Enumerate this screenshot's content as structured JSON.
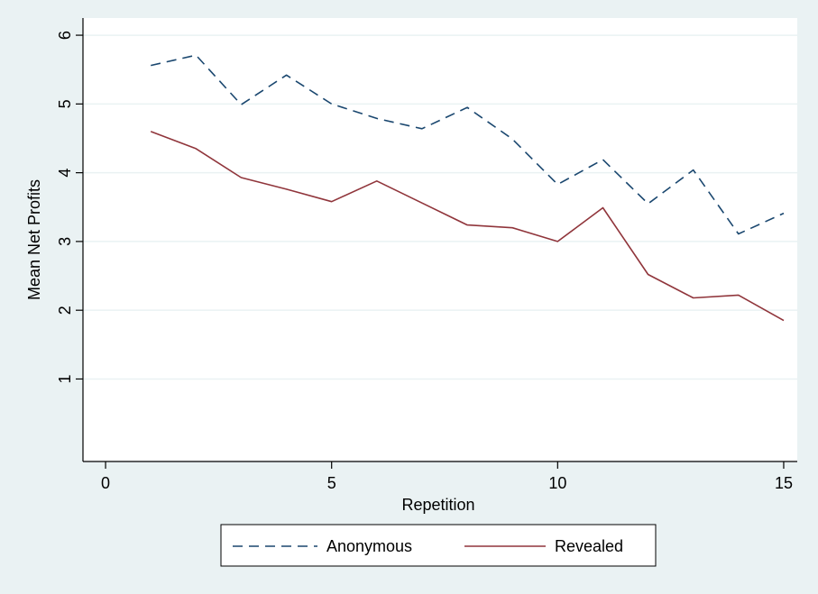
{
  "chart_data": {
    "type": "line",
    "title": "",
    "xlabel": "Repetition",
    "ylabel": "Mean Net Profits",
    "xlim": [
      -0.5,
      15.3
    ],
    "ylim": [
      -0.2,
      6.25
    ],
    "x_ticks": [
      0,
      5,
      10,
      15
    ],
    "y_ticks": [
      1,
      2,
      3,
      4,
      5,
      6
    ],
    "x_tick_labels": [
      "0",
      "5",
      "10",
      "15"
    ],
    "y_tick_labels": [
      "1",
      "2",
      "3",
      "4",
      "5",
      "6"
    ],
    "grid": true,
    "legend_position": "bottom",
    "x": [
      1,
      2,
      3,
      4,
      5,
      6,
      7,
      8,
      9,
      10,
      11,
      12,
      13,
      14,
      15
    ],
    "series": [
      {
        "name": "Anonymous",
        "color": "#1a476f",
        "dash": "dashed",
        "values": [
          5.56,
          5.71,
          4.99,
          5.42,
          5.0,
          4.79,
          4.64,
          4.95,
          4.49,
          3.83,
          4.19,
          3.55,
          4.04,
          3.11,
          3.41
        ]
      },
      {
        "name": "Revealed",
        "color": "#90353b",
        "dash": "solid",
        "values": [
          4.6,
          4.35,
          3.93,
          3.76,
          3.58,
          3.88,
          3.56,
          3.24,
          3.2,
          3.0,
          3.49,
          2.52,
          2.18,
          2.22,
          1.85
        ]
      }
    ]
  }
}
